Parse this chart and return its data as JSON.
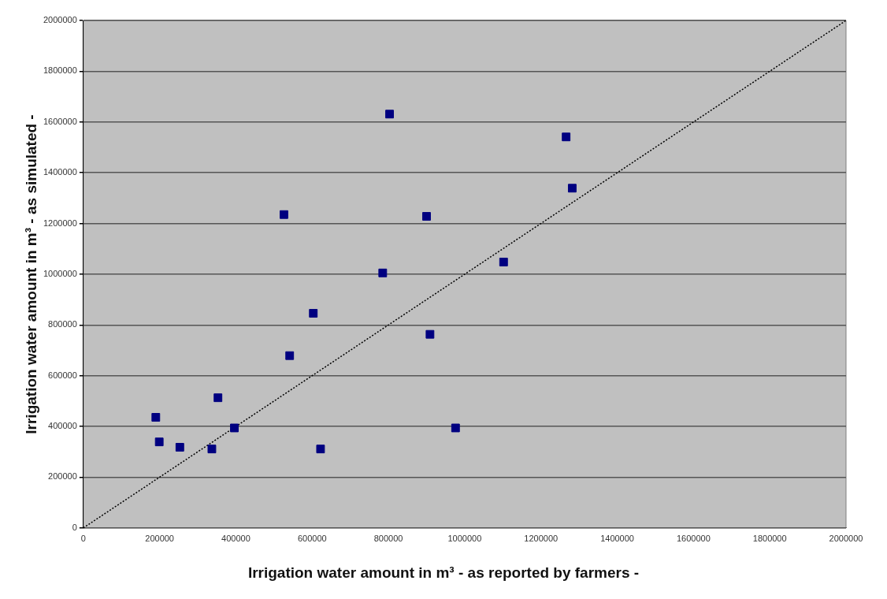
{
  "chart_data": {
    "type": "scatter",
    "xlabel": "Irrigation water amount in m³ - as reported by farmers -",
    "ylabel": "Irrigation water amount in m³ - as simulated -",
    "series": [
      {
        "color": "#000080",
        "marker": "square",
        "x": [
          190000,
          199000,
          253000,
          337000,
          353000,
          396000,
          526000,
          541000,
          603000,
          622000,
          803000,
          785000,
          900000,
          909000,
          976000,
          1102000,
          1266000,
          1282000
        ],
        "values": [
          436000,
          339000,
          318000,
          311000,
          513000,
          394000,
          1235000,
          679000,
          846000,
          311000,
          1631000,
          1005000,
          1228000,
          763000,
          394000,
          1048000,
          1541000,
          1339000
        ]
      },
      {
        "type": "line",
        "color": "#000000",
        "marker": "none",
        "line_style": "dotted",
        "x": [
          0,
          2000000
        ],
        "values": [
          0,
          2000000
        ]
      }
    ],
    "xlim": [
      0,
      2000000
    ],
    "xticks": [
      0,
      200000,
      400000,
      600000,
      800000,
      1000000,
      1200000,
      1400000,
      1600000,
      1800000,
      2000000
    ],
    "ylim": [
      0,
      2000000
    ],
    "yticks": [
      0,
      200000,
      400000,
      600000,
      800000,
      1000000,
      1200000,
      1400000,
      1600000,
      1800000,
      2000000
    ],
    "grid": "y",
    "legend": false
  }
}
